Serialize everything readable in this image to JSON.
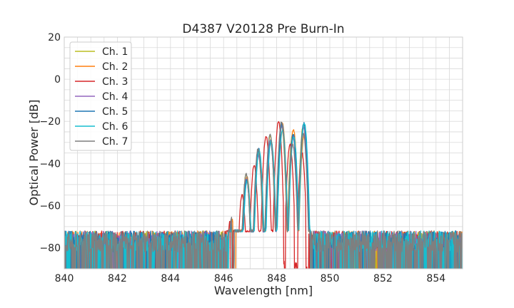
{
  "chart_data": {
    "type": "line",
    "title": "D4387 V20128 Pre Burn-In",
    "xlabel": "Wavelength [nm]",
    "ylabel": "Optical Power [dB]",
    "xlim": [
      840,
      855
    ],
    "ylim": [
      -90,
      20
    ],
    "xticks": [
      840,
      842,
      844,
      846,
      848,
      850,
      852,
      854
    ],
    "yticks": [
      20,
      0,
      -20,
      -40,
      -60,
      -80
    ],
    "xtick_labels": [
      "840",
      "842",
      "844",
      "846",
      "848",
      "850",
      "852",
      "854"
    ],
    "ytick_labels": [
      "20",
      "0",
      "−20",
      "−40",
      "−60",
      "−80"
    ],
    "grid": true,
    "legend_position": "top-left",
    "noise_floor_db": -80,
    "series": [
      {
        "name": "Ch. 1",
        "color": "#bcbd22",
        "peaks": [
          [
            846.3,
            -67
          ],
          [
            846.85,
            -45
          ],
          [
            847.3,
            -35
          ],
          [
            847.75,
            -27
          ],
          [
            848.18,
            -22
          ],
          [
            848.6,
            -26
          ],
          [
            849.0,
            -22
          ]
        ],
        "shift": 0.0,
        "drop_low": 846.35,
        "drop_high": null
      },
      {
        "name": "Ch. 2",
        "color": "#ff7f0e",
        "peaks": [
          [
            846.3,
            -67
          ],
          [
            846.85,
            -46
          ],
          [
            847.3,
            -34
          ],
          [
            847.75,
            -29
          ],
          [
            848.18,
            -21
          ],
          [
            848.6,
            -24
          ],
          [
            849.0,
            -27
          ]
        ],
        "shift": 0.03,
        "drop_low": 846.4,
        "drop_high": null
      },
      {
        "name": "Ch. 3",
        "color": "#d62728",
        "peaks": [
          [
            846.3,
            -67
          ],
          [
            846.75,
            -55
          ],
          [
            847.2,
            -41
          ],
          [
            847.65,
            -27
          ],
          [
            848.12,
            -20
          ],
          [
            848.55,
            -31
          ],
          [
            849.0,
            -35
          ]
        ],
        "shift": -0.05,
        "drop_low": 846.3,
        "drop_high": [
          848.05,
          849.25
        ]
      },
      {
        "name": "Ch. 4",
        "color": "#9467bd",
        "peaks": [
          [
            846.3,
            -67
          ],
          [
            846.85,
            -47
          ],
          [
            847.3,
            -36
          ],
          [
            847.75,
            -29
          ],
          [
            848.18,
            -22
          ],
          [
            848.6,
            -27
          ],
          [
            849.0,
            -23
          ]
        ],
        "shift": 0.01,
        "drop_low": 846.35,
        "drop_high": null
      },
      {
        "name": "Ch. 5",
        "color": "#1f77b4",
        "peaks": [
          [
            846.3,
            -68
          ],
          [
            846.85,
            -48
          ],
          [
            847.3,
            -33
          ],
          [
            847.75,
            -30
          ],
          [
            848.18,
            -21
          ],
          [
            848.6,
            -26
          ],
          [
            849.0,
            -21
          ]
        ],
        "shift": 0.02,
        "drop_low": 846.35,
        "drop_high": null
      },
      {
        "name": "Ch. 6",
        "color": "#17becf",
        "peaks": [
          [
            846.3,
            -68
          ],
          [
            846.85,
            -48
          ],
          [
            847.3,
            -34
          ],
          [
            847.75,
            -29
          ],
          [
            848.18,
            -24
          ],
          [
            848.6,
            -27
          ],
          [
            849.0,
            -21
          ]
        ],
        "shift": 0.04,
        "drop_low": 846.35,
        "drop_high": null
      },
      {
        "name": "Ch. 7",
        "color": "#7f7f7f",
        "peaks": [
          [
            846.3,
            -66
          ],
          [
            846.85,
            -45
          ],
          [
            847.3,
            -33
          ],
          [
            847.75,
            -26
          ],
          [
            848.18,
            -20
          ],
          [
            848.6,
            -31
          ],
          [
            849.0,
            -26
          ]
        ],
        "shift": 0.0,
        "drop_low": 846.35,
        "drop_high": null
      }
    ]
  }
}
